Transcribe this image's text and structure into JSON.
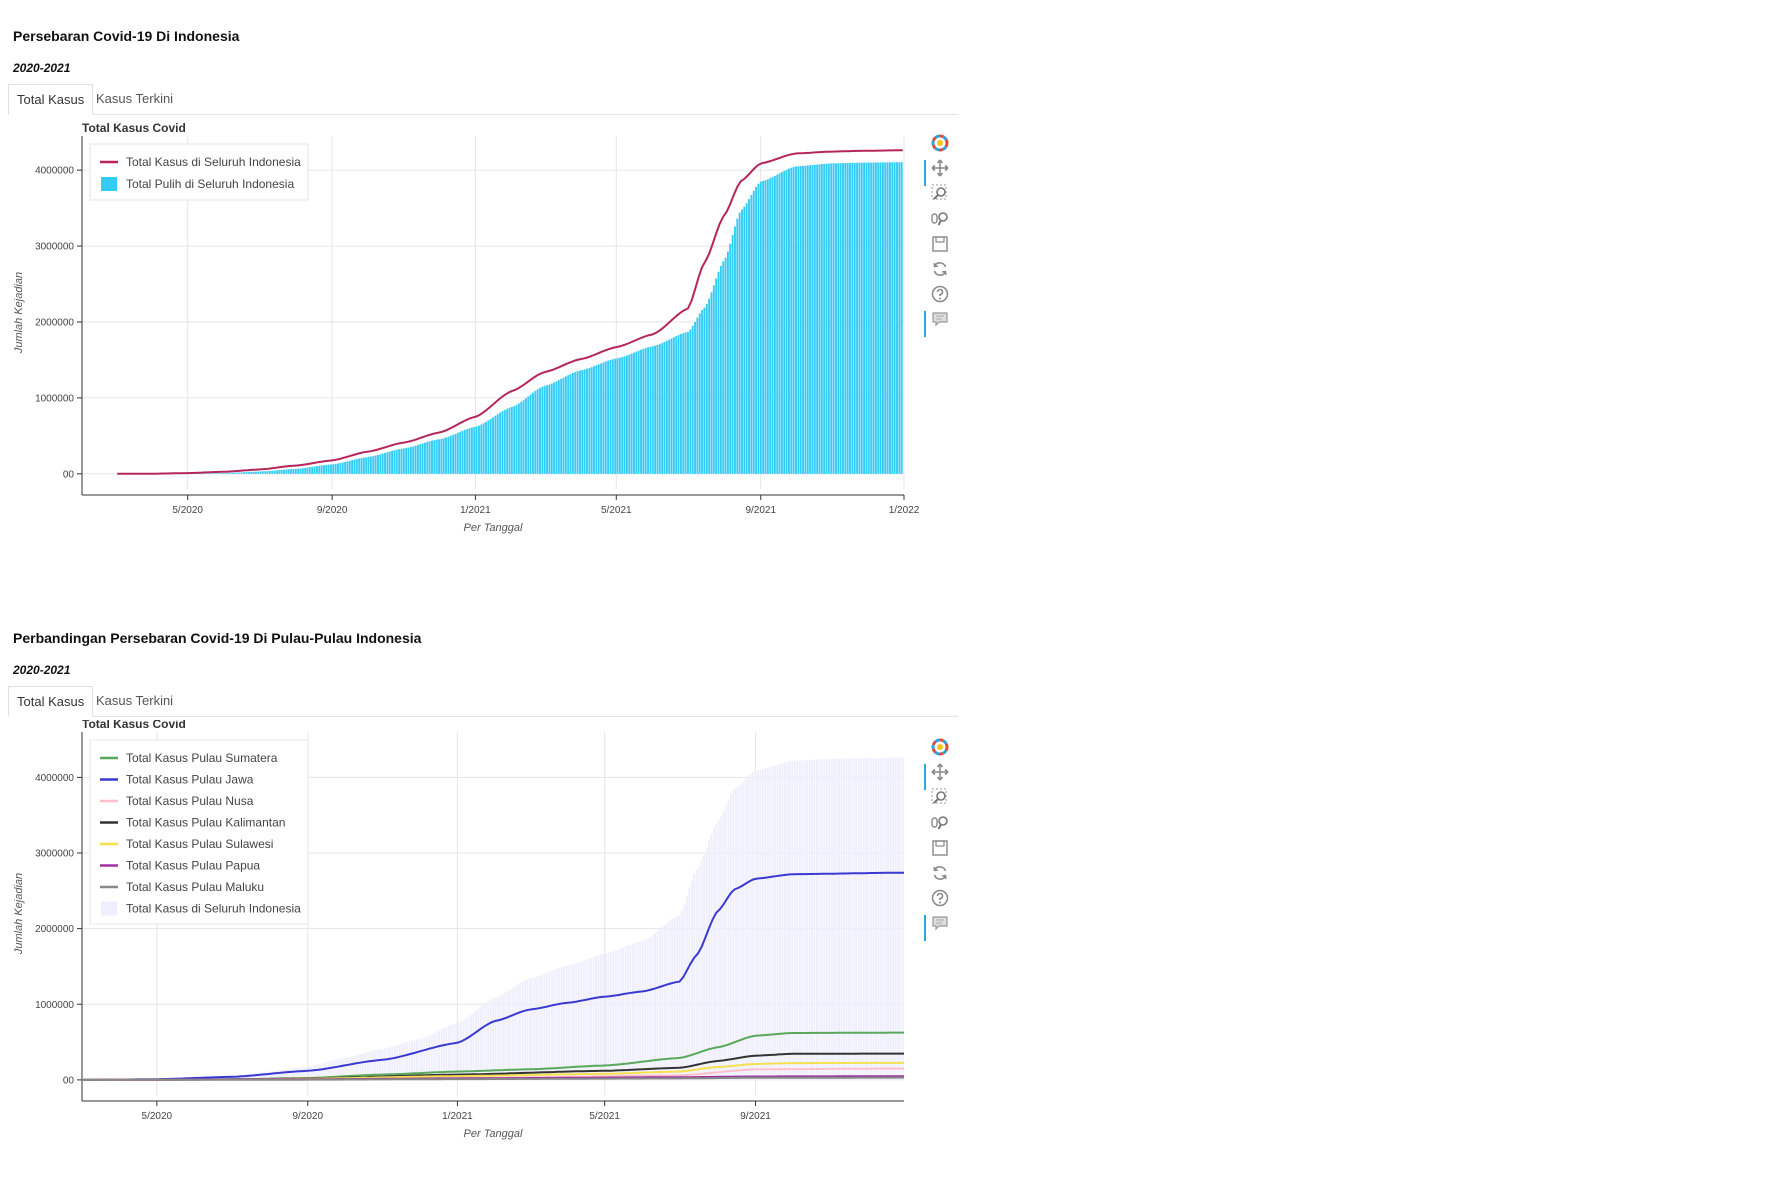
{
  "sections": [
    {
      "title": "Persebaran Covid-19 Di Indonesia",
      "subtitle": "2020-2021",
      "tabs": [
        {
          "label": "Total Kasus",
          "active": true
        },
        {
          "label": "Kasus Terkini",
          "active": false
        }
      ]
    },
    {
      "title": "Perbandingan Persebaran Covid-19 Di Pulau-Pulau Indonesia",
      "subtitle": "2020-2021",
      "tabs": [
        {
          "label": "Total Kasus",
          "active": true
        },
        {
          "label": "Kasus Terkini",
          "active": false
        }
      ]
    }
  ],
  "toolbar_icons": [
    "bokeh-logo-icon",
    "pan-icon",
    "box-zoom-icon",
    "wheel-zoom-icon",
    "save-icon",
    "reset-icon",
    "help-icon",
    "hover-icon"
  ],
  "chart_data": [
    {
      "type": "line",
      "title": "Total Kasus Covid",
      "xlabel": "Per Tanggal",
      "ylabel": "Jumlah Kejadian",
      "x_ticks": [
        "5/2020",
        "9/2020",
        "1/2021",
        "5/2021",
        "9/2021",
        "1/2022"
      ],
      "y_ticks": [
        "00",
        "1000000",
        "2000000",
        "3000000",
        "4000000"
      ],
      "xlim": [
        "2020-02-01",
        "2022-01-01"
      ],
      "ylim": [
        -200000,
        4450000
      ],
      "legend_position": "top-left",
      "grid": true,
      "series": [
        {
          "name": "Total Kasus di Seluruh Indonesia",
          "kind": "line",
          "color": "#b5265a",
          "x": [
            "2020-03-02",
            "2020-04-01",
            "2020-05-01",
            "2020-06-01",
            "2020-07-01",
            "2020-08-01",
            "2020-09-01",
            "2020-10-01",
            "2020-11-01",
            "2020-12-01",
            "2021-01-01",
            "2021-02-01",
            "2021-03-01",
            "2021-04-01",
            "2021-05-01",
            "2021-06-01",
            "2021-07-01",
            "2021-07-15",
            "2021-08-01",
            "2021-08-15",
            "2021-09-01",
            "2021-10-01",
            "2021-11-01",
            "2021-12-01",
            "2021-12-31"
          ],
          "y": [
            0,
            1500,
            10000,
            27000,
            57000,
            109000,
            177000,
            291000,
            411000,
            543000,
            751000,
            1089000,
            1341000,
            1512000,
            1669000,
            1837000,
            2178000,
            2780000,
            3409000,
            3854000,
            4089000,
            4221000,
            4245000,
            4256000,
            4262000
          ]
        },
        {
          "name": "Total Pulih di Seluruh Indonesia",
          "kind": "bar",
          "color": "#33ccf5",
          "x": [
            "2020-04-01",
            "2020-05-01",
            "2020-06-01",
            "2020-07-01",
            "2020-08-01",
            "2020-09-01",
            "2020-10-01",
            "2020-11-01",
            "2020-12-01",
            "2021-01-01",
            "2021-02-01",
            "2021-03-01",
            "2021-04-01",
            "2021-05-01",
            "2021-06-01",
            "2021-07-01",
            "2021-07-15",
            "2021-08-01",
            "2021-08-15",
            "2021-09-01",
            "2021-10-01",
            "2021-11-01",
            "2021-12-01",
            "2021-12-31"
          ],
          "y": [
            0,
            2000,
            10000,
            30000,
            65000,
            125000,
            220000,
            335000,
            455000,
            620000,
            880000,
            1160000,
            1365000,
            1520000,
            1680000,
            1870000,
            2190000,
            2820000,
            3470000,
            3850000,
            4050000,
            4090000,
            4100000,
            4105000
          ]
        }
      ]
    },
    {
      "type": "line",
      "title": "Total Kasus Covid",
      "xlabel": "Per Tanggal",
      "ylabel": "Jumlah Kejadian",
      "x_ticks": [
        "5/2020",
        "9/2020",
        "1/2021",
        "5/2021",
        "9/2021"
      ],
      "y_ticks": [
        "00",
        "1000000",
        "2000000",
        "3000000",
        "4000000"
      ],
      "xlim": [
        "2020-03-01",
        "2021-12-31"
      ],
      "ylim": [
        -200000,
        4600000
      ],
      "legend_position": "top-left",
      "grid": true,
      "series": [
        {
          "name": "Total Kasus Pulau Sumatera",
          "kind": "line",
          "color": "#5aa85a",
          "x": [
            "2020-03-02",
            "2020-05-01",
            "2020-07-01",
            "2020-09-01",
            "2020-11-01",
            "2021-01-01",
            "2021-03-01",
            "2021-05-01",
            "2021-07-01",
            "2021-08-01",
            "2021-09-01",
            "2021-10-01",
            "2021-12-31"
          ],
          "y": [
            0,
            1000,
            7000,
            25000,
            70000,
            110000,
            140000,
            190000,
            290000,
            430000,
            585000,
            620000,
            625000
          ]
        },
        {
          "name": "Total Kasus Pulau Jawa",
          "kind": "line",
          "color": "#3a3ad0",
          "x": [
            "2020-03-02",
            "2020-05-01",
            "2020-07-01",
            "2020-09-01",
            "2020-11-01",
            "2021-01-01",
            "2021-02-01",
            "2021-03-01",
            "2021-04-01",
            "2021-05-01",
            "2021-06-01",
            "2021-07-01",
            "2021-07-15",
            "2021-08-01",
            "2021-08-15",
            "2021-09-01",
            "2021-10-01",
            "2021-12-31"
          ],
          "y": [
            0,
            9000,
            40000,
            120000,
            265000,
            490000,
            780000,
            930000,
            1020000,
            1100000,
            1170000,
            1300000,
            1650000,
            2230000,
            2520000,
            2660000,
            2720000,
            2740000
          ]
        },
        {
          "name": "Total Kasus Pulau Nusa",
          "kind": "line",
          "color": "#ffc0cb",
          "x": [
            "2020-03-02",
            "2020-09-01",
            "2021-01-01",
            "2021-07-01",
            "2021-09-01",
            "2021-12-31"
          ],
          "y": [
            0,
            5000,
            20000,
            60000,
            140000,
            150000
          ]
        },
        {
          "name": "Total Kasus Pulau Kalimantan",
          "kind": "line",
          "color": "#333333",
          "x": [
            "2020-03-02",
            "2020-07-01",
            "2020-09-01",
            "2021-01-01",
            "2021-05-01",
            "2021-07-01",
            "2021-08-01",
            "2021-09-01",
            "2021-10-01",
            "2021-12-31"
          ],
          "y": [
            0,
            6000,
            18000,
            70000,
            120000,
            160000,
            250000,
            320000,
            345000,
            348000
          ]
        },
        {
          "name": "Total Kasus Pulau Sulawesi",
          "kind": "line",
          "color": "#f5e050",
          "x": [
            "2020-03-02",
            "2020-07-01",
            "2020-09-01",
            "2021-01-01",
            "2021-05-01",
            "2021-07-01",
            "2021-08-01",
            "2021-09-01",
            "2021-10-01",
            "2021-12-31"
          ],
          "y": [
            0,
            5000,
            15000,
            50000,
            80000,
            110000,
            170000,
            210000,
            222000,
            225000
          ]
        },
        {
          "name": "Total Kasus Pulau Papua",
          "kind": "line",
          "color": "#a030a0",
          "x": [
            "2020-03-02",
            "2020-09-01",
            "2021-01-01",
            "2021-07-01",
            "2021-09-01",
            "2021-12-31"
          ],
          "y": [
            0,
            8000,
            20000,
            35000,
            45000,
            48000
          ]
        },
        {
          "name": "Total Kasus Pulau Maluku",
          "kind": "line",
          "color": "#888888",
          "x": [
            "2020-03-02",
            "2020-09-01",
            "2021-01-01",
            "2021-07-01",
            "2021-09-01",
            "2021-12-31"
          ],
          "y": [
            0,
            3000,
            10000,
            20000,
            28000,
            30000
          ]
        },
        {
          "name": "Total Kasus di Seluruh Indonesia",
          "kind": "bar",
          "color": "#eeeefc",
          "x": [
            "2020-03-02",
            "2020-04-01",
            "2020-05-01",
            "2020-06-01",
            "2020-07-01",
            "2020-08-01",
            "2020-09-01",
            "2020-10-01",
            "2020-11-01",
            "2020-12-01",
            "2021-01-01",
            "2021-02-01",
            "2021-03-01",
            "2021-04-01",
            "2021-05-01",
            "2021-06-01",
            "2021-07-01",
            "2021-07-15",
            "2021-08-01",
            "2021-08-15",
            "2021-09-01",
            "2021-10-01",
            "2021-11-01",
            "2021-12-01",
            "2021-12-31"
          ],
          "y": [
            0,
            1500,
            10000,
            27000,
            57000,
            109000,
            177000,
            291000,
            411000,
            543000,
            751000,
            1089000,
            1341000,
            1512000,
            1669000,
            1837000,
            2178000,
            2780000,
            3409000,
            3854000,
            4089000,
            4221000,
            4245000,
            4256000,
            4262000
          ]
        }
      ]
    }
  ]
}
